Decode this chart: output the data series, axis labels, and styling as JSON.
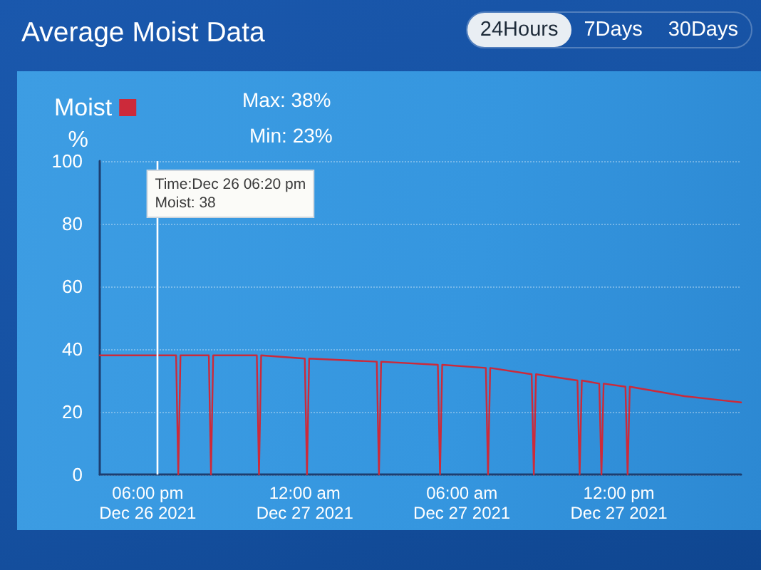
{
  "chart_data": {
    "type": "line",
    "title": "Average Moist Data",
    "ylabel": "%",
    "x": [
      "2021-12-26T16:10",
      "2021-12-26T18:20",
      "2021-12-26T19:05",
      "2021-12-26T19:10",
      "2021-12-26T19:15",
      "2021-12-26T20:20",
      "2021-12-26T20:25",
      "2021-12-26T20:30",
      "2021-12-26T22:10",
      "2021-12-26T22:15",
      "2021-12-26T22:20",
      "2021-12-27T00:00",
      "2021-12-27T00:05",
      "2021-12-27T00:10",
      "2021-12-27T02:45",
      "2021-12-27T02:50",
      "2021-12-27T02:55",
      "2021-12-27T05:05",
      "2021-12-27T05:10",
      "2021-12-27T05:15",
      "2021-12-27T06:55",
      "2021-12-27T07:00",
      "2021-12-27T07:05",
      "2021-12-27T08:40",
      "2021-12-27T08:45",
      "2021-12-27T08:50",
      "2021-12-27T10:25",
      "2021-12-27T10:30",
      "2021-12-27T10:35",
      "2021-12-27T11:15",
      "2021-12-27T11:20",
      "2021-12-27T11:25",
      "2021-12-27T12:15",
      "2021-12-27T12:20",
      "2021-12-27T12:25",
      "2021-12-27T14:30",
      "2021-12-27T16:40"
    ],
    "series": [
      {
        "name": "Moist",
        "color": "#cc2a3a",
        "values": [
          38,
          38,
          38,
          0,
          38,
          38,
          0,
          38,
          38,
          0,
          38,
          37,
          0,
          37,
          36,
          0,
          36,
          35,
          0,
          35,
          34,
          0,
          34,
          32,
          0,
          32,
          30,
          0,
          30,
          29,
          0,
          29,
          28,
          0,
          28,
          25,
          23
        ]
      }
    ],
    "xlim": [
      "2021-12-26T16:10",
      "2021-12-27T16:40"
    ],
    "xticks": [
      {
        "value": "2021-12-26T18:00",
        "label": "06:00 pm\nDec 26 2021"
      },
      {
        "value": "2021-12-27T00:00",
        "label": "12:00 am\nDec 27 2021"
      },
      {
        "value": "2021-12-27T06:00",
        "label": "06:00 am\nDec 27 2021"
      },
      {
        "value": "2021-12-27T12:00",
        "label": "12:00 pm\nDec 27 2021"
      }
    ],
    "ylim": [
      0,
      100
    ],
    "yticks": [
      0,
      20,
      40,
      60,
      80,
      100
    ],
    "grid": "y",
    "legend": "top left",
    "marker": "none",
    "line_style": "solid",
    "ref_lines": [
      {
        "axis": "x",
        "value": "2021-12-26T18:20",
        "color": "#ffffff"
      }
    ],
    "annotations": [
      "Max: 38%",
      "Min: 23%",
      "24Hours",
      "7Days",
      "30Days",
      {
        "text": "Time:Dec 26 06:20 pm\nMoist: 38",
        "x": "2021-12-26T18:20"
      }
    ]
  }
}
